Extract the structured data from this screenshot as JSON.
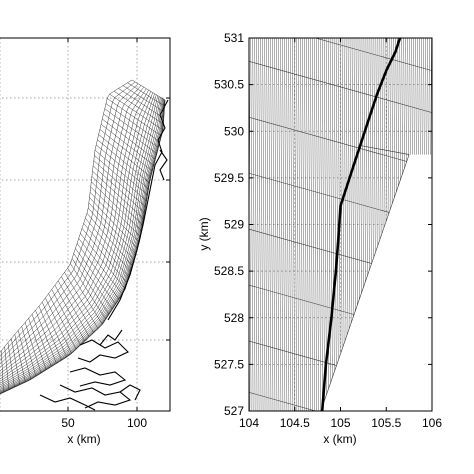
{
  "chart_data": [
    {
      "type": "line",
      "panel": "left",
      "title": "",
      "xlabel": "x (km)",
      "ylabel": "",
      "xlim": [
        -20,
        120
      ],
      "xticks": [
        50,
        100
      ],
      "tick_labels_x": [
        "50",
        "100"
      ],
      "grid": true,
      "grid_style": "dotted",
      "series": [
        {
          "description_values": "curvilinear computational grid along coastline",
          "values": []
        },
        {
          "description_values": "coastline and estuaries",
          "values": []
        }
      ]
    },
    {
      "type": "line",
      "panel": "right",
      "title": "",
      "xlabel": "x (km)",
      "ylabel": "y (km)",
      "xlim": [
        104,
        106
      ],
      "ylim": [
        527,
        531
      ],
      "xticks": [
        104,
        104.5,
        105,
        105.5,
        106
      ],
      "yticks": [
        527,
        527.5,
        528,
        528.5,
        529,
        529.5,
        530,
        530.5,
        531
      ],
      "tick_labels_x": [
        "104",
        "104.5",
        "105",
        "105.5",
        "106"
      ],
      "tick_labels_y": [
        "527",
        "527.5",
        "528",
        "528.5",
        "529",
        "529.5",
        "530",
        "530.5",
        "531"
      ],
      "grid": true,
      "grid_style": "dotted",
      "series": [
        {
          "x": [
            104.8,
            104.84,
            104.9,
            104.95,
            104.98,
            105.0,
            105.1,
            105.2,
            105.3,
            105.4,
            105.5,
            105.6,
            105.65
          ],
          "y": [
            527.0,
            527.5,
            528.0,
            528.5,
            528.9,
            529.2,
            529.5,
            529.8,
            530.1,
            530.4,
            530.65,
            530.85,
            531.0
          ]
        }
      ]
    }
  ],
  "left_panel": {
    "xlabel": "x (km)",
    "xtick_labels": [
      "50",
      "100"
    ]
  },
  "right_panel": {
    "xlabel": "x (km)",
    "ylabel": "y (km)",
    "xtick_labels": [
      "104",
      "104.5",
      "105",
      "105.5",
      "106"
    ],
    "ytick_labels": [
      "527",
      "527.5",
      "528",
      "528.5",
      "529",
      "529.5",
      "530",
      "530.5",
      "531"
    ]
  },
  "colors": {
    "grid_line": "#000000",
    "axis": "#000000",
    "background": "#ffffff"
  }
}
